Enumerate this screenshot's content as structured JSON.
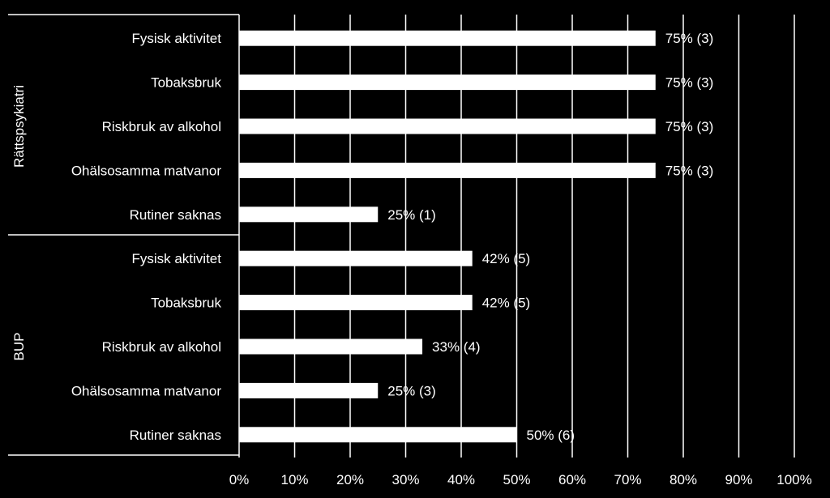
{
  "chart_data": {
    "type": "bar",
    "orientation": "horizontal",
    "title": "",
    "xlabel": "",
    "ylabel": "",
    "xlim": [
      0,
      100
    ],
    "x_ticks": [
      "0%",
      "10%",
      "20%",
      "30%",
      "40%",
      "50%",
      "60%",
      "70%",
      "80%",
      "90%",
      "100%"
    ],
    "grid": "vertical gridlines on",
    "colors": {
      "background": "#000000",
      "bar": "#ffffff",
      "text": "#ffffff",
      "grid": "#ffffff"
    },
    "groups": [
      {
        "name": "Rättspsykiatri",
        "categories": [
          "Fysisk aktivitet",
          "Tobaksbruk",
          "Riskbruk av alkohol",
          "Ohälsosamma matvanor",
          "Rutiner saknas"
        ],
        "values": [
          75,
          75,
          75,
          75,
          25
        ],
        "labels": [
          "75% (3)",
          "75% (3)",
          "75% (3)",
          "75% (3)",
          "25% (1)"
        ]
      },
      {
        "name": "BUP",
        "categories": [
          "Fysisk aktivitet",
          "Tobaksbruk",
          "Riskbruk av alkohol",
          "Ohälsosamma matvanor",
          "Rutiner saknas"
        ],
        "values": [
          42,
          42,
          33,
          25,
          50
        ],
        "labels": [
          "42% (5)",
          "42% (5)",
          "33% (4)",
          "25% (3)",
          "50% (6)"
        ]
      }
    ]
  }
}
